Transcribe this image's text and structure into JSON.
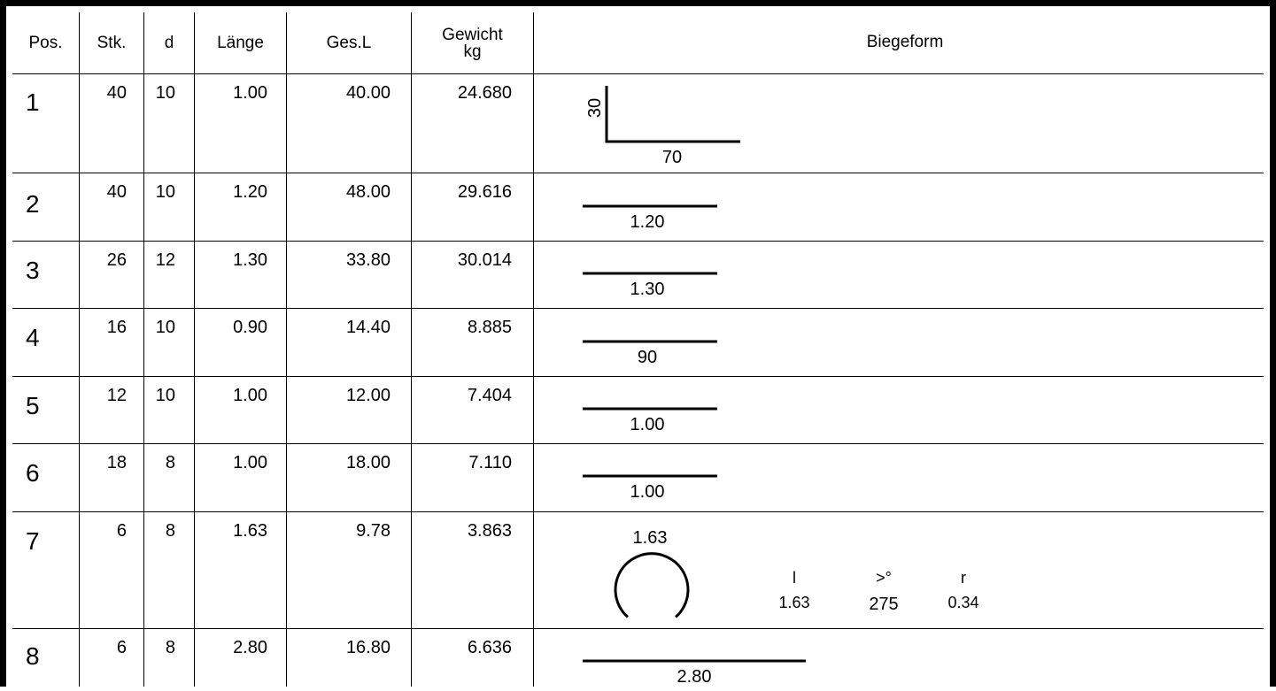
{
  "headers": {
    "pos": "Pos.",
    "stk": "Stk.",
    "d": "d",
    "laenge": "Länge",
    "gesl": "Ges.L",
    "gewicht": "Gewicht",
    "gewicht_unit": "kg",
    "biegeform": "Biegeform"
  },
  "rows": [
    {
      "pos": "1",
      "stk": "40",
      "d": "10",
      "laenge": "1.00",
      "gesl": "40.00",
      "gewicht": "24.680",
      "shape": {
        "type": "l-bend",
        "leg_vertical": "30",
        "leg_horizontal": "70"
      }
    },
    {
      "pos": "2",
      "stk": "40",
      "d": "10",
      "laenge": "1.20",
      "gesl": "48.00",
      "gewicht": "29.616",
      "shape": {
        "type": "straight",
        "label": "1.20"
      }
    },
    {
      "pos": "3",
      "stk": "26",
      "d": "12",
      "laenge": "1.30",
      "gesl": "33.80",
      "gewicht": "30.014",
      "shape": {
        "type": "straight",
        "label": "1.30"
      }
    },
    {
      "pos": "4",
      "stk": "16",
      "d": "10",
      "laenge": "0.90",
      "gesl": "14.40",
      "gewicht": "8.885",
      "shape": {
        "type": "straight",
        "label": "90"
      }
    },
    {
      "pos": "5",
      "stk": "12",
      "d": "10",
      "laenge": "1.00",
      "gesl": "12.00",
      "gewicht": "7.404",
      "shape": {
        "type": "straight",
        "label": "1.00"
      }
    },
    {
      "pos": "6",
      "stk": "18",
      "d": "8",
      "laenge": "1.00",
      "gesl": "18.00",
      "gewicht": "7.110",
      "shape": {
        "type": "straight",
        "label": "1.00"
      }
    },
    {
      "pos": "7",
      "stk": "6",
      "d": "8",
      "laenge": "1.63",
      "gesl": "9.78",
      "gewicht": "3.863",
      "shape": {
        "type": "ring",
        "label": "1.63",
        "params": [
          {
            "head": "l",
            "value": "1.63"
          },
          {
            "head": ">°",
            "value": "275"
          },
          {
            "head": "r",
            "value": "0.34"
          }
        ]
      }
    },
    {
      "pos": "8",
      "stk": "6",
      "d": "8",
      "laenge": "2.80",
      "gesl": "16.80",
      "gewicht": "6.636",
      "shape": {
        "type": "straight",
        "label": "2.80"
      }
    }
  ]
}
